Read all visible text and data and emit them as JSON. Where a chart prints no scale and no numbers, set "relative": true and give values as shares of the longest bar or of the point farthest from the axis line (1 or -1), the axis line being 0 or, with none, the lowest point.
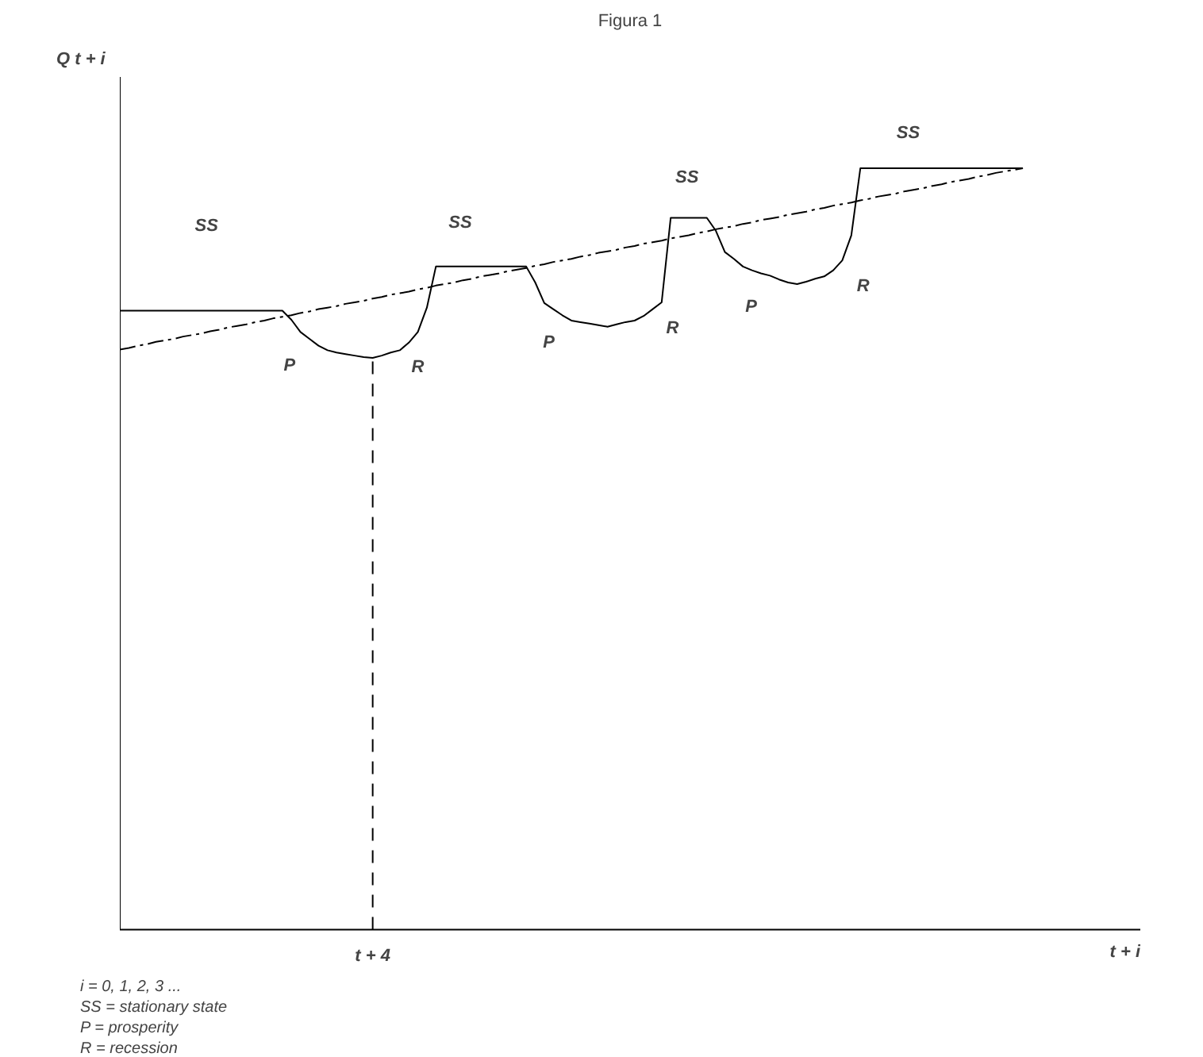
{
  "chart_data": {
    "type": "line",
    "title": "Figura 1",
    "relative": true,
    "grid": false,
    "categories": [
      null,
      null,
      null,
      null,
      null,
      null,
      null,
      null,
      null,
      null,
      null,
      null,
      null,
      null,
      null,
      null,
      null,
      null,
      null,
      null,
      null,
      null,
      null,
      null,
      null,
      null,
      null,
      null,
      null,
      null,
      null,
      null,
      null,
      null,
      null,
      null,
      null,
      null,
      null,
      null,
      null,
      null,
      null,
      null,
      null,
      null,
      null,
      null,
      null,
      null,
      null,
      null,
      null,
      null,
      null,
      null,
      null,
      null,
      null,
      null,
      null,
      null,
      null,
      null,
      null,
      null,
      null,
      null,
      null,
      null,
      null,
      null,
      null,
      null,
      null,
      null,
      null,
      null,
      null,
      null,
      null,
      null,
      null,
      null,
      null,
      null,
      null,
      null,
      null,
      null,
      null,
      null,
      null,
      null,
      null,
      null,
      null,
      null,
      null,
      null,
      null
    ],
    "series": [
      {
        "color": "#000000",
        "line_style": "solid",
        "values": [
          0.813,
          0.813,
          0.813,
          0.813,
          0.813,
          0.813,
          0.813,
          0.813,
          0.813,
          0.813,
          0.813,
          0.813,
          0.813,
          0.813,
          0.813,
          0.813,
          0.813,
          0.813,
          0.813,
          0.801,
          0.785,
          0.776,
          0.767,
          0.761,
          0.758,
          0.756,
          0.754,
          0.752,
          0.751,
          0.754,
          0.758,
          0.761,
          0.771,
          0.785,
          0.817,
          0.871,
          0.871,
          0.871,
          0.871,
          0.871,
          0.871,
          0.871,
          0.871,
          0.871,
          0.871,
          0.871,
          0.85,
          0.823,
          0.815,
          0.807,
          0.8,
          0.798,
          0.796,
          0.794,
          0.792,
          0.795,
          0.798,
          0.8,
          0.806,
          0.815,
          0.824,
          0.935,
          0.935,
          0.935,
          0.935,
          0.935,
          0.918,
          0.89,
          0.881,
          0.871,
          0.866,
          0.862,
          0.859,
          0.854,
          0.85,
          0.848,
          0.851,
          0.855,
          0.858,
          0.866,
          0.879,
          0.912,
          1.0,
          1.0,
          1.0,
          1.0,
          1.0,
          1.0,
          1.0,
          1.0,
          1.0,
          1.0,
          1.0,
          1.0,
          1.0,
          1.0,
          1.0,
          1.0,
          1.0,
          1.0,
          1.0
        ]
      },
      {
        "color": "#000000",
        "line_style": "dashdot",
        "values": [
          0.762,
          0.764,
          0.767,
          0.769,
          0.772,
          0.774,
          0.776,
          0.779,
          0.781,
          0.783,
          0.786,
          0.788,
          0.791,
          0.793,
          0.795,
          0.798,
          0.8,
          0.803,
          0.805,
          0.807,
          0.81,
          0.812,
          0.815,
          0.817,
          0.819,
          0.822,
          0.824,
          0.826,
          0.829,
          0.831,
          0.834,
          0.836,
          0.838,
          0.841,
          0.843,
          0.846,
          0.848,
          0.85,
          0.853,
          0.855,
          0.858,
          0.86,
          0.862,
          0.865,
          0.867,
          0.869,
          0.872,
          0.874,
          0.877,
          0.879,
          0.881,
          0.884,
          0.886,
          0.889,
          0.891,
          0.893,
          0.896,
          0.898,
          0.901,
          0.903,
          0.905,
          0.908,
          0.91,
          0.912,
          0.915,
          0.917,
          0.92,
          0.922,
          0.924,
          0.927,
          0.929,
          0.932,
          0.934,
          0.936,
          0.939,
          0.941,
          0.943,
          0.946,
          0.948,
          0.951,
          0.953,
          0.955,
          0.958,
          0.96,
          0.963,
          0.965,
          0.967,
          0.97,
          0.972,
          0.974,
          0.977,
          0.979,
          0.982,
          0.984,
          0.986,
          0.989,
          0.991,
          0.994,
          0.996,
          0.998,
          1.0
        ]
      }
    ],
    "annotations": [
      "SS",
      "SS",
      "SS",
      "SS",
      "P",
      "R",
      "P",
      "R",
      "P",
      "R",
      "t + 4",
      "Q t + i",
      "t + i",
      "i = 0, 1, 2, 3 ...",
      "SS = stationary state",
      "P  = prosperity",
      "R  = recession"
    ]
  }
}
